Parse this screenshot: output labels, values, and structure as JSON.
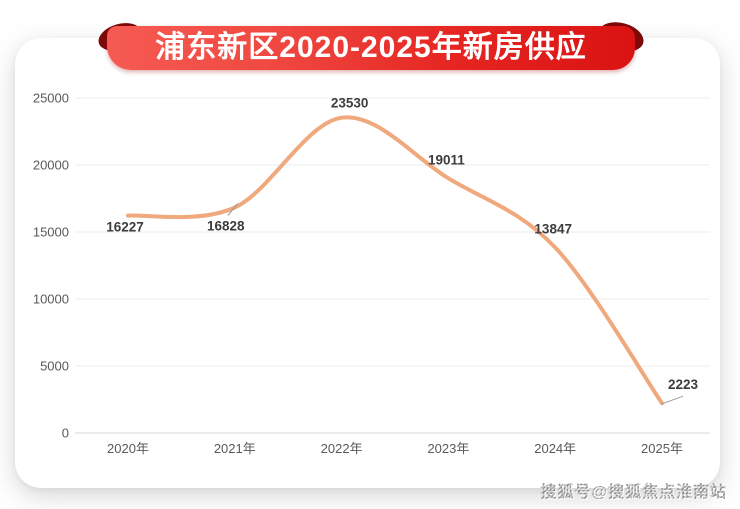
{
  "banner": {
    "title": "浦东新区2020-2025年新房供应",
    "gradient_left": "#f55b53",
    "gradient_right": "#da1212",
    "fold_color": "#7c0909",
    "text_color": "#ffffff"
  },
  "page": {
    "watermark": "搜狐号@搜狐焦点淮南站"
  },
  "chart_data": {
    "type": "line",
    "title": "浦东新区2020-2025年新房供应",
    "categories": [
      "2020年",
      "2021年",
      "2022年",
      "2023年",
      "2024年",
      "2025年"
    ],
    "values": [
      16227,
      16828,
      23530,
      19011,
      13847,
      2223
    ],
    "xlabel": "",
    "ylabel": "",
    "ylim": [
      0,
      25000
    ],
    "y_ticks": [
      0,
      5000,
      10000,
      15000,
      20000,
      25000
    ],
    "grid": true,
    "smooth": true,
    "legend": "none",
    "line_color": "#f0a87d",
    "gridline_color": "#ececec",
    "axis_line_color": "#d9d9d9",
    "axis_text_color": "#595959",
    "label_text_color": "#3d3d3d",
    "leader_line_color": "#9a9a9a"
  }
}
